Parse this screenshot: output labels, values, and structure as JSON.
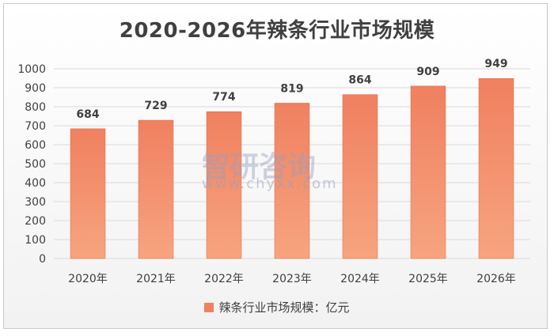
{
  "chart_data": {
    "type": "bar",
    "title": "2020-2026年辣条行业市场规模",
    "categories": [
      "2020年",
      "2021年",
      "2022年",
      "2023年",
      "2024年",
      "2025年",
      "2026年"
    ],
    "series": [
      {
        "name": "辣条行业市场规模：亿元",
        "values": [
          684,
          729,
          774,
          819,
          864,
          909,
          949
        ]
      }
    ],
    "ylim": [
      0,
      1000
    ],
    "yticks": [
      0,
      100,
      200,
      300,
      400,
      500,
      600,
      700,
      800,
      900,
      1000
    ],
    "grid": true,
    "legend_position": "bottom",
    "bar_color": "#f08060",
    "bar_color_light": "#f7a47f"
  },
  "watermark": {
    "logo_text": "智研咨询",
    "url": "www.chyxx.com"
  }
}
